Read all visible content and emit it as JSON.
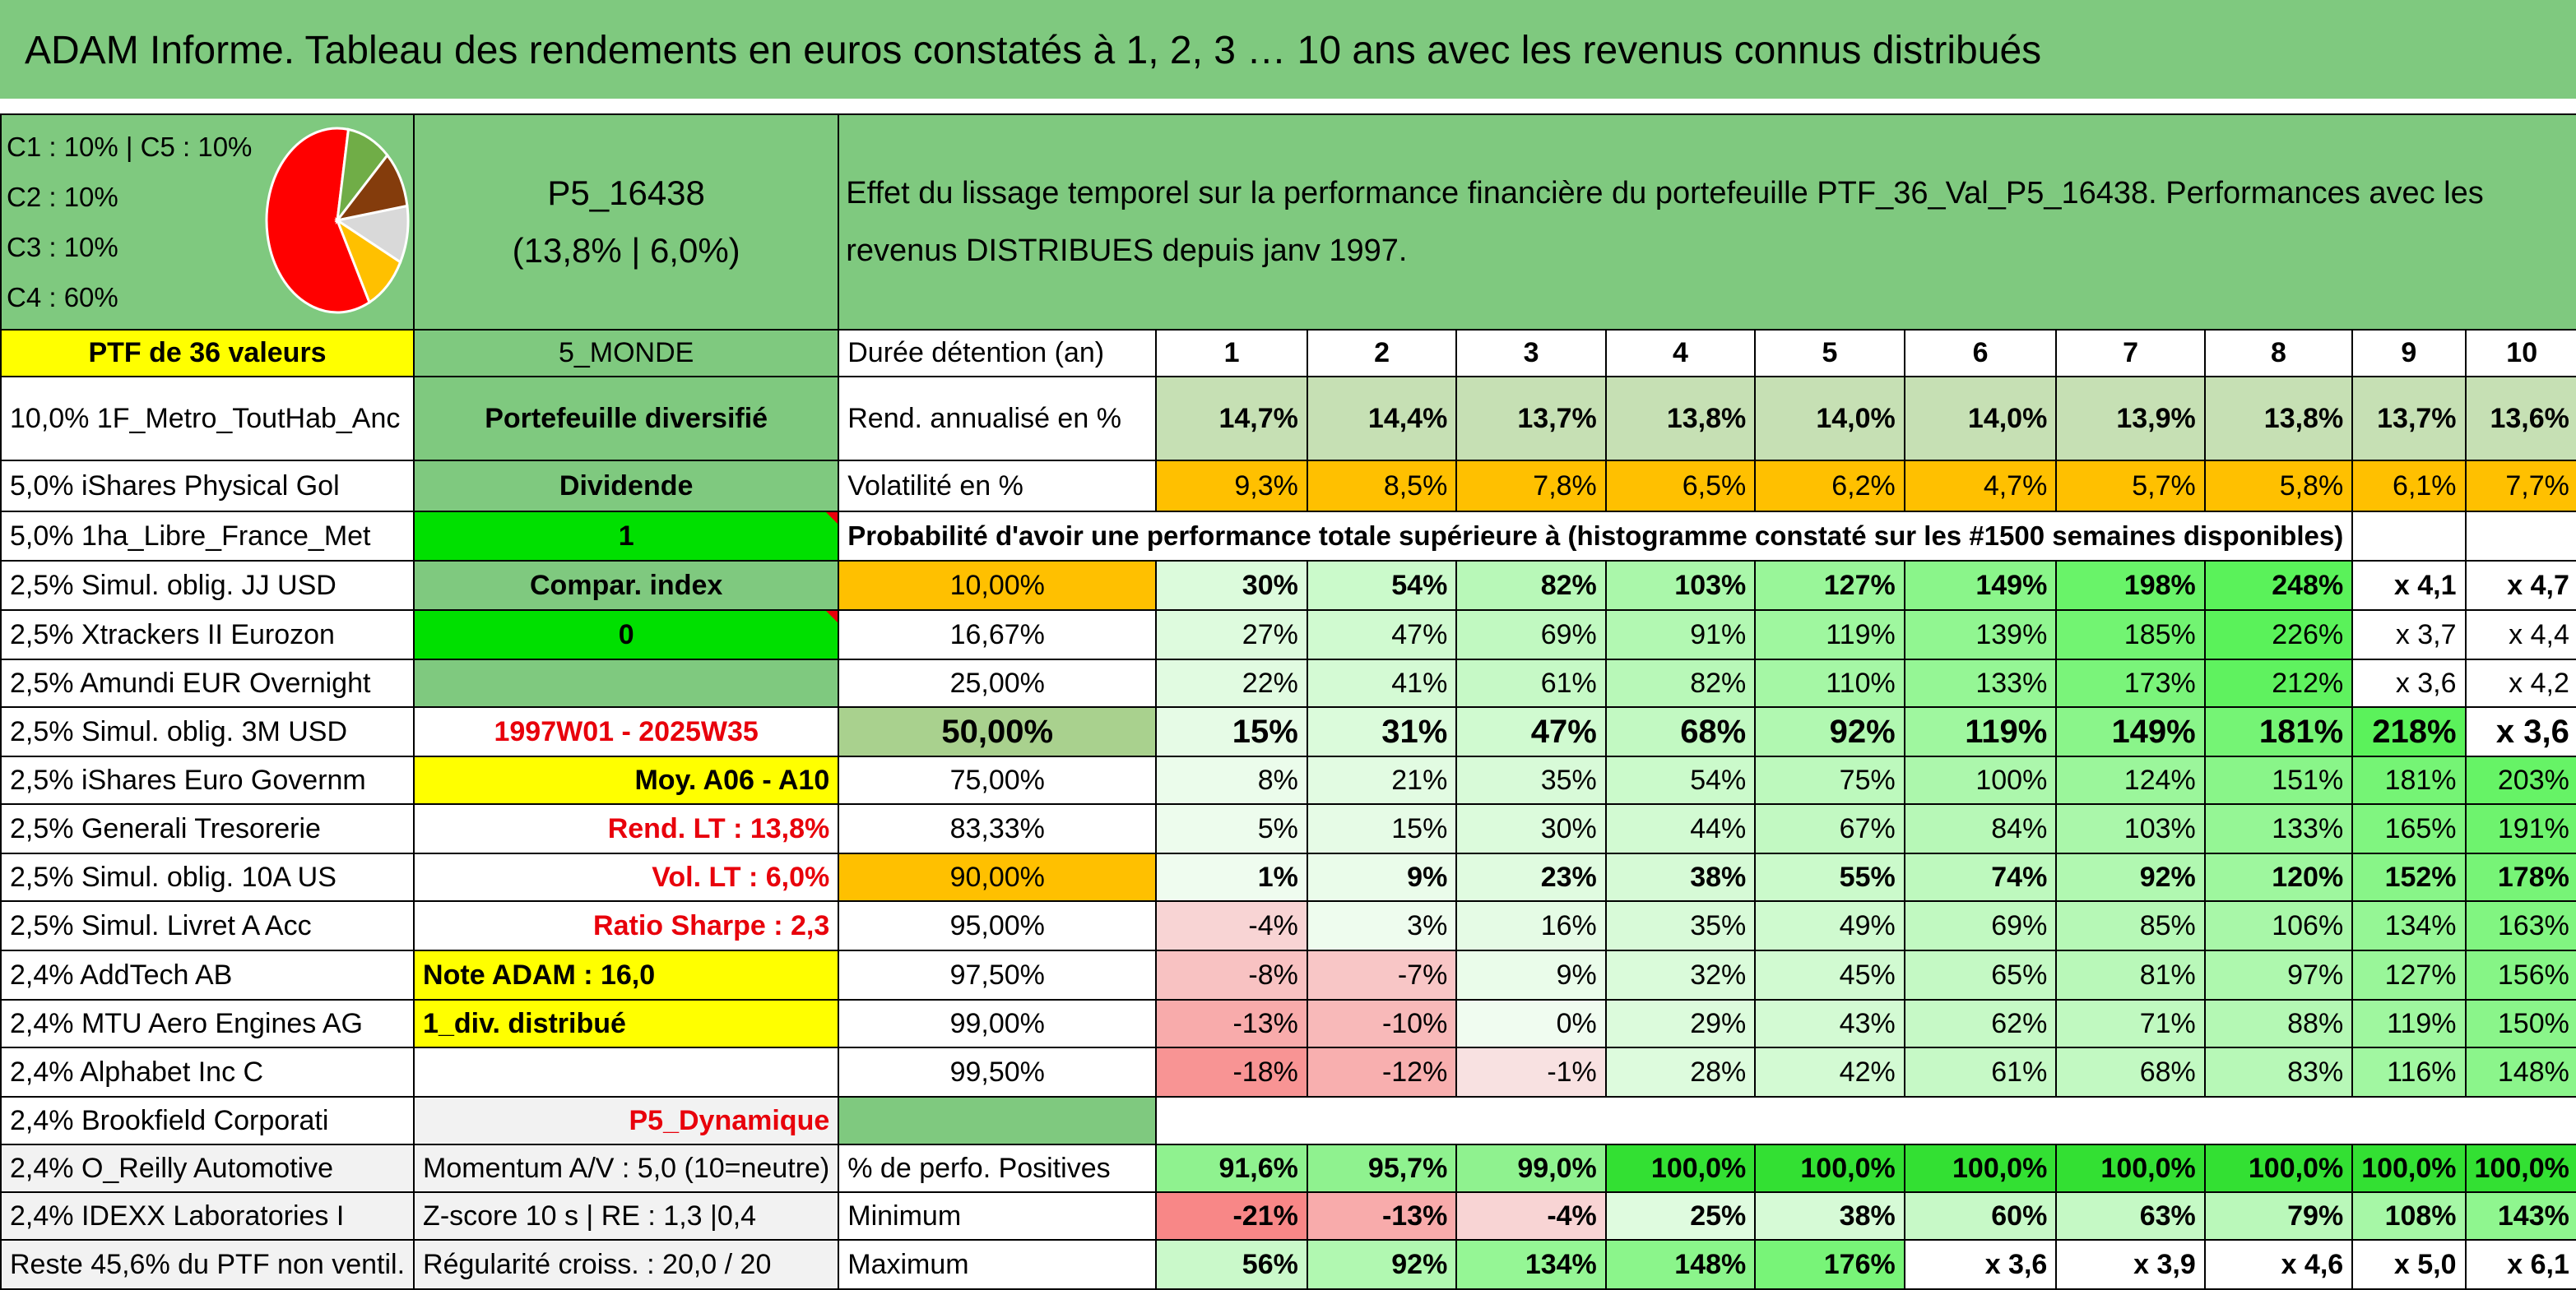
{
  "title": "ADAM Informe. Tableau des rendements en euros constatés à 1, 2, 3 … 10 ans avec les revenus connus distribués",
  "allocation": {
    "lines": [
      "C1 : 10% | C5 : 10%",
      "C2 : 10%",
      "C3 : 10%",
      "C4 : 60%"
    ],
    "pie_colors": [
      "#ff0000",
      "#70ad47",
      "#843c0c",
      "#d9d9d9",
      "#ffc000"
    ],
    "pie_values": [
      60,
      10,
      10,
      10,
      10
    ]
  },
  "portfolio": {
    "code": "P5_16438",
    "stats": "(13,8% | 6,0%)"
  },
  "description": "Effet du lissage temporel sur la performance financière du portefeuille PTF_36_Val_P5_16438. Performances avec les revenus DISTRIBUES depuis janv 1997.",
  "ptf_label": "PTF de 36 valeurs",
  "zone": "5_MONDE",
  "duration_label": "Durée détention (an)",
  "years": [
    "1",
    "2",
    "3",
    "4",
    "5",
    "6",
    "7",
    "8",
    "9",
    "10"
  ],
  "holdings": [
    "10,0% 1F_Metro_ToutHab_Anc",
    "5,0% iShares Physical Gol",
    "5,0% 1ha_Libre_France_Met",
    "2,5% Simul. oblig. JJ USD",
    "2,5% Xtrackers II Eurozon",
    "2,5% Amundi EUR Overnight",
    "2,5% Simul. oblig. 3M USD",
    "2,5% iShares Euro Governm",
    "2,5% Generali Tresorerie",
    "2,5% Simul. oblig. 10A US",
    "2,5% Simul. Livret A Acc",
    "2,4% AddTech AB",
    "2,4% MTU Aero Engines AG",
    "2,4% Alphabet Inc C",
    "2,4% Brookfield Corporati",
    "2,4% O_Reilly Automotive",
    "2,4% IDEXX Laboratories I",
    "Reste 45,6% du PTF non ventil."
  ],
  "info": {
    "type": "Portefeuille diversifié",
    "revenue": "Dividende",
    "flag1": "1",
    "compar": "Compar. index",
    "flag0": "0",
    "period": "1997W01 - 2025W35",
    "avg": "Moy. A06 - A10",
    "rend_lt": "Rend. LT : 13,8%",
    "vol_lt": "Vol. LT : 6,0%",
    "sharpe": "Ratio Sharpe : 2,3",
    "note": "Note ADAM : 16,0",
    "div": "1_div. distribué",
    "profile": "P5_Dynamique",
    "momentum": "Momentum A/V : 5,0 (10=neutre)",
    "zscore": "Z-score 10 s | RE : 1,3 |0,4",
    "regularity": "Régularité croiss. : 20,0 / 20"
  },
  "rend": {
    "label": "Rend. annualisé en %",
    "values": [
      "14,7%",
      "14,4%",
      "13,7%",
      "13,8%",
      "14,0%",
      "14,0%",
      "13,9%",
      "13,8%",
      "13,7%",
      "13,6%"
    ]
  },
  "vol": {
    "label": "Volatilité en %",
    "values": [
      "9,3%",
      "8,5%",
      "7,8%",
      "6,5%",
      "6,2%",
      "4,7%",
      "5,7%",
      "5,8%",
      "6,1%",
      "7,7%"
    ]
  },
  "prob_label": "Probabilité d'avoir une performance totale supérieure à (histogramme constaté sur les #1500 semaines disponibles)",
  "prob_rows": [
    {
      "p": "10,00%",
      "values": [
        "30%",
        "54%",
        "82%",
        "103%",
        "127%",
        "149%",
        "198%",
        "248%",
        "x 4,1",
        "x 4,7"
      ]
    },
    {
      "p": "16,67%",
      "values": [
        "27%",
        "47%",
        "69%",
        "91%",
        "119%",
        "139%",
        "185%",
        "226%",
        "x 3,7",
        "x 4,4"
      ]
    },
    {
      "p": "25,00%",
      "values": [
        "22%",
        "41%",
        "61%",
        "82%",
        "110%",
        "133%",
        "173%",
        "212%",
        "x 3,6",
        "x 4,2"
      ]
    },
    {
      "p": "50,00%",
      "values": [
        "15%",
        "31%",
        "47%",
        "68%",
        "92%",
        "119%",
        "149%",
        "181%",
        "218%",
        "x 3,6"
      ]
    },
    {
      "p": "75,00%",
      "values": [
        "8%",
        "21%",
        "35%",
        "54%",
        "75%",
        "100%",
        "124%",
        "151%",
        "181%",
        "203%"
      ]
    },
    {
      "p": "83,33%",
      "values": [
        "5%",
        "15%",
        "30%",
        "44%",
        "67%",
        "84%",
        "103%",
        "133%",
        "165%",
        "191%"
      ]
    },
    {
      "p": "90,00%",
      "values": [
        "1%",
        "9%",
        "23%",
        "38%",
        "55%",
        "74%",
        "92%",
        "120%",
        "152%",
        "178%"
      ]
    },
    {
      "p": "95,00%",
      "values": [
        "-4%",
        "3%",
        "16%",
        "35%",
        "49%",
        "69%",
        "85%",
        "106%",
        "134%",
        "163%"
      ]
    },
    {
      "p": "97,50%",
      "values": [
        "-8%",
        "-7%",
        "9%",
        "32%",
        "45%",
        "65%",
        "81%",
        "97%",
        "127%",
        "156%"
      ]
    },
    {
      "p": "99,00%",
      "values": [
        "-13%",
        "-10%",
        "0%",
        "29%",
        "43%",
        "62%",
        "71%",
        "88%",
        "119%",
        "150%"
      ]
    },
    {
      "p": "99,50%",
      "values": [
        "-18%",
        "-12%",
        "-1%",
        "28%",
        "42%",
        "61%",
        "68%",
        "83%",
        "116%",
        "148%"
      ]
    }
  ],
  "pos": {
    "label": "% de perfo. Positives",
    "values": [
      "91,6%",
      "95,7%",
      "99,0%",
      "100,0%",
      "100,0%",
      "100,0%",
      "100,0%",
      "100,0%",
      "100,0%",
      "100,0%"
    ]
  },
  "min": {
    "label": "Minimum",
    "values": [
      "-21%",
      "-13%",
      "-4%",
      "25%",
      "38%",
      "60%",
      "63%",
      "79%",
      "108%",
      "143%"
    ]
  },
  "max": {
    "label": "Maximum",
    "values": [
      "56%",
      "92%",
      "134%",
      "148%",
      "176%",
      "x 3,6",
      "x 3,9",
      "x 4,6",
      "x 5,0",
      "x 6,1"
    ]
  },
  "colors": {
    "header_green": "#7fc97f",
    "yellow": "#ffff00",
    "orange": "#ffc000",
    "bright_green": "#00e000",
    "rend_green": "#c6e0b4",
    "red_text": "#e8000b"
  }
}
